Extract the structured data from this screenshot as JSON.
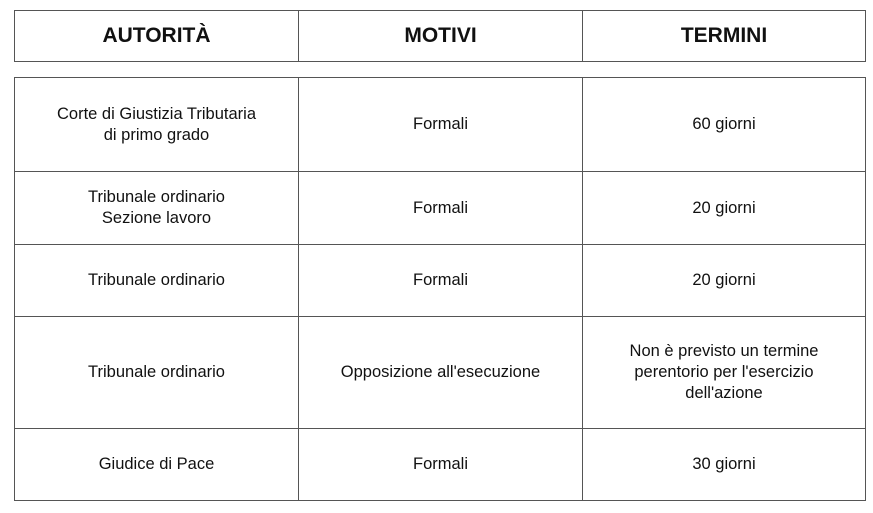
{
  "header": {
    "authority": "AUTORITÀ",
    "reasons": "MOTIVI",
    "deadlines": "TERMINI"
  },
  "rows": [
    {
      "authority": "Corte di Giustizia Tributaria\ndi primo grado",
      "reasons": "Formali",
      "deadline": "60 giorni"
    },
    {
      "authority": "Tribunale ordinario\nSezione lavoro",
      "reasons": "Formali",
      "deadline": "20 giorni"
    },
    {
      "authority": "Tribunale ordinario",
      "reasons": "Formali",
      "deadline": "20 giorni"
    },
    {
      "authority": "Tribunale ordinario",
      "reasons": "Opposizione all'esecuzione",
      "deadline": "Non è previsto un termine\nperentorio per l'esercizio\ndell'azione"
    },
    {
      "authority": "Giudice di Pace",
      "reasons": "Formali",
      "deadline": "30 giorni"
    }
  ]
}
